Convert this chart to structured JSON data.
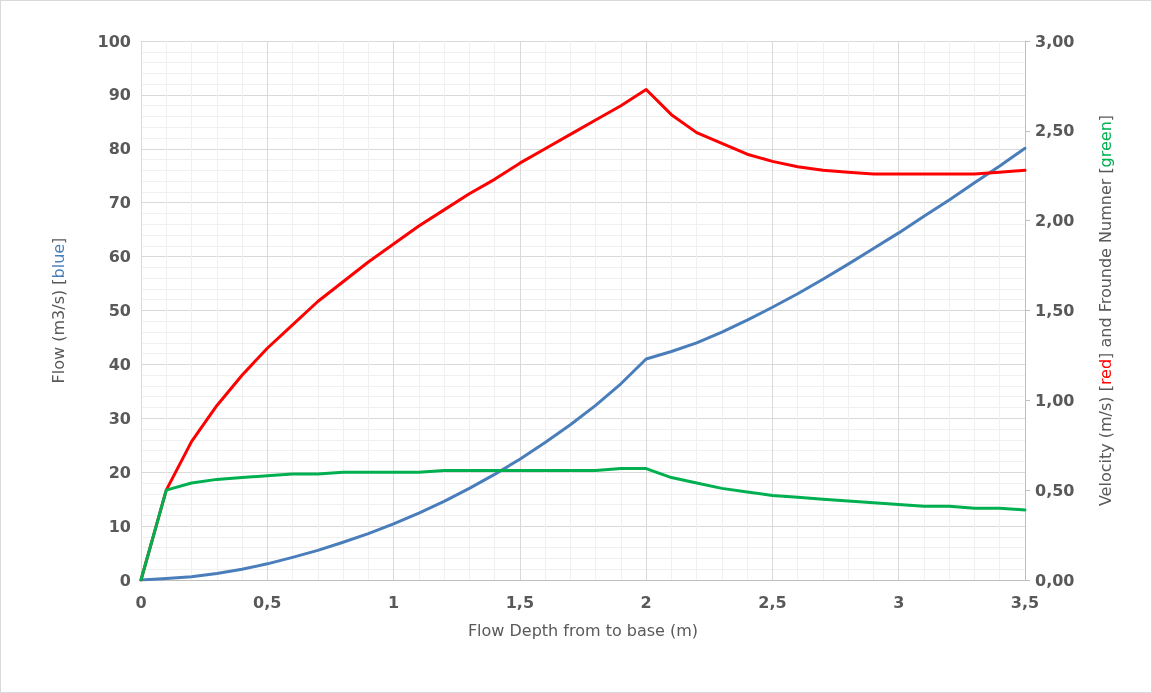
{
  "chart_data": {
    "type": "line",
    "xlabel": "Flow Depth from to base (m)",
    "ylabel": "Flow (m3/s) [blue]",
    "y2label": "Velocity (m/s) [red] and Frounde Numner [green]",
    "x": [
      0,
      0.1,
      0.2,
      0.3,
      0.4,
      0.5,
      0.6,
      0.7,
      0.8,
      0.9,
      1,
      1.1,
      1.2,
      1.3,
      1.4,
      1.5,
      1.6,
      1.7,
      1.8,
      1.9,
      2,
      2.1,
      2.2,
      2.3,
      2.4,
      2.5,
      2.6,
      2.7,
      2.8,
      2.9,
      3,
      3.1,
      3.2,
      3.3,
      3.4,
      3.5
    ],
    "series": [
      {
        "color": "#4a7ebb",
        "values": [
          0,
          0.3,
          0.6,
          1.2,
          2,
          3,
          4.2,
          5.5,
          7,
          8.6,
          10.4,
          12.4,
          14.6,
          17,
          19.6,
          22.4,
          25.5,
          28.8,
          32.4,
          36.4,
          41,
          42.4,
          44,
          46,
          48.2,
          50.6,
          53.1,
          55.8,
          58.6,
          61.5,
          64.4,
          67.5,
          70.5,
          73.7,
          76.8,
          80.1
        ]
      },
      {
        "color": "#ff0000",
        "axis": "y2",
        "values": [
          0,
          0.5,
          0.77,
          0.97,
          1.14,
          1.29,
          1.42,
          1.55,
          1.66,
          1.77,
          1.87,
          1.97,
          2.06,
          2.15,
          2.23,
          2.32,
          2.4,
          2.48,
          2.56,
          2.64,
          2.73,
          2.59,
          2.49,
          2.43,
          2.37,
          2.33,
          2.3,
          2.28,
          2.27,
          2.26,
          2.26,
          2.26,
          2.26,
          2.26,
          2.27,
          2.28
        ]
      },
      {
        "color": "#00b050",
        "axis": "y2",
        "values": [
          0,
          0.5,
          0.54,
          0.56,
          0.57,
          0.58,
          0.59,
          0.59,
          0.6,
          0.6,
          0.6,
          0.6,
          0.61,
          0.61,
          0.61,
          0.61,
          0.61,
          0.61,
          0.61,
          0.62,
          0.62,
          0.57,
          0.54,
          0.51,
          0.49,
          0.47,
          0.46,
          0.45,
          0.44,
          0.43,
          0.42,
          0.41,
          0.41,
          0.4,
          0.4,
          0.39
        ]
      }
    ],
    "xlim": [
      0,
      3.5
    ],
    "xticks": [
      0,
      {
        "value": 0.5,
        "label": "0,5"
      },
      1,
      {
        "value": 1.5,
        "label": "1,5"
      },
      2,
      {
        "value": 2.5,
        "label": "2,5"
      },
      3,
      {
        "value": 3.5,
        "label": "3,5"
      }
    ],
    "ylim": [
      0,
      100
    ],
    "yticks": [
      0,
      10,
      20,
      30,
      40,
      50,
      60,
      70,
      80,
      90,
      100
    ],
    "y2lim": [
      0,
      3
    ],
    "y2ticks": [
      {
        "value": 0,
        "label": "0,00"
      },
      {
        "value": 0.5,
        "label": "0,50"
      },
      {
        "value": 1,
        "label": "1,00"
      },
      {
        "value": 1.5,
        "label": "1,50"
      },
      {
        "value": 2,
        "label": "2,00"
      },
      {
        "value": 2.5,
        "label": "2,50"
      },
      {
        "value": 3,
        "label": "3,00"
      }
    ],
    "grid": true,
    "marker": "none",
    "line_style": "solid"
  }
}
